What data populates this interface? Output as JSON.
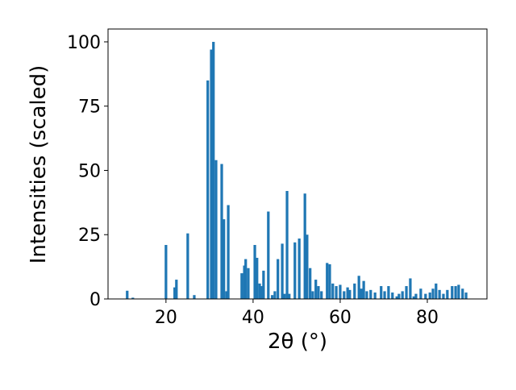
{
  "chart_data": {
    "type": "bar",
    "x_label": "2θ (°)",
    "y_label": "Intensities (scaled)",
    "color": "#1f77b4",
    "bar_width": 0.6,
    "xlim": [
      6.7,
      93.7
    ],
    "xticks": [
      20,
      40,
      60,
      80
    ],
    "ylim": [
      0,
      105
    ],
    "yticks": [
      0,
      25,
      50,
      75,
      100
    ],
    "x": [
      11.1,
      12.4,
      20.0,
      22.0,
      22.4,
      25.0,
      26.5,
      29.6,
      30.4,
      30.9,
      31.5,
      32.8,
      33.3,
      33.9,
      34.3,
      37.4,
      38.0,
      38.3,
      38.9,
      40.4,
      40.9,
      41.5,
      41.9,
      42.4,
      43.5,
      44.4,
      45.0,
      45.7,
      46.7,
      47.2,
      47.8,
      48.3,
      49.6,
      50.6,
      51.9,
      52.4,
      53.1,
      53.7,
      54.4,
      55.0,
      55.7,
      57.0,
      57.6,
      58.3,
      59.1,
      60.0,
      60.9,
      61.7,
      62.2,
      63.3,
      64.3,
      64.8,
      65.4,
      66.1,
      67.0,
      68.0,
      69.4,
      70.2,
      71.1,
      72.0,
      73.0,
      73.5,
      74.3,
      75.2,
      76.1,
      76.9,
      77.4,
      78.5,
      79.6,
      80.6,
      81.3,
      82.0,
      82.8,
      83.7,
      84.6,
      85.7,
      86.5,
      87.2,
      88.1,
      88.9
    ],
    "values": [
      3.2,
      0.5,
      21,
      4.5,
      7.5,
      25.5,
      1.5,
      85,
      97,
      100,
      54,
      52.5,
      31,
      3,
      36.5,
      10,
      13,
      15.5,
      12,
      21,
      16,
      6,
      5,
      11,
      34,
      1.5,
      3,
      15.5,
      21.5,
      2,
      42,
      2,
      22,
      23.5,
      41,
      25,
      12,
      3,
      7.5,
      5,
      3,
      14,
      13.5,
      6,
      5,
      5.5,
      3,
      4.5,
      3.5,
      6,
      9,
      4,
      7,
      3,
      3.5,
      2.5,
      5,
      3,
      5,
      2.5,
      1,
      2,
      3,
      5,
      8,
      1,
      2,
      4,
      2,
      2.5,
      4,
      6,
      3.5,
      2,
      3.5,
      5,
      5,
      5.5,
      4,
      2.5
    ]
  }
}
